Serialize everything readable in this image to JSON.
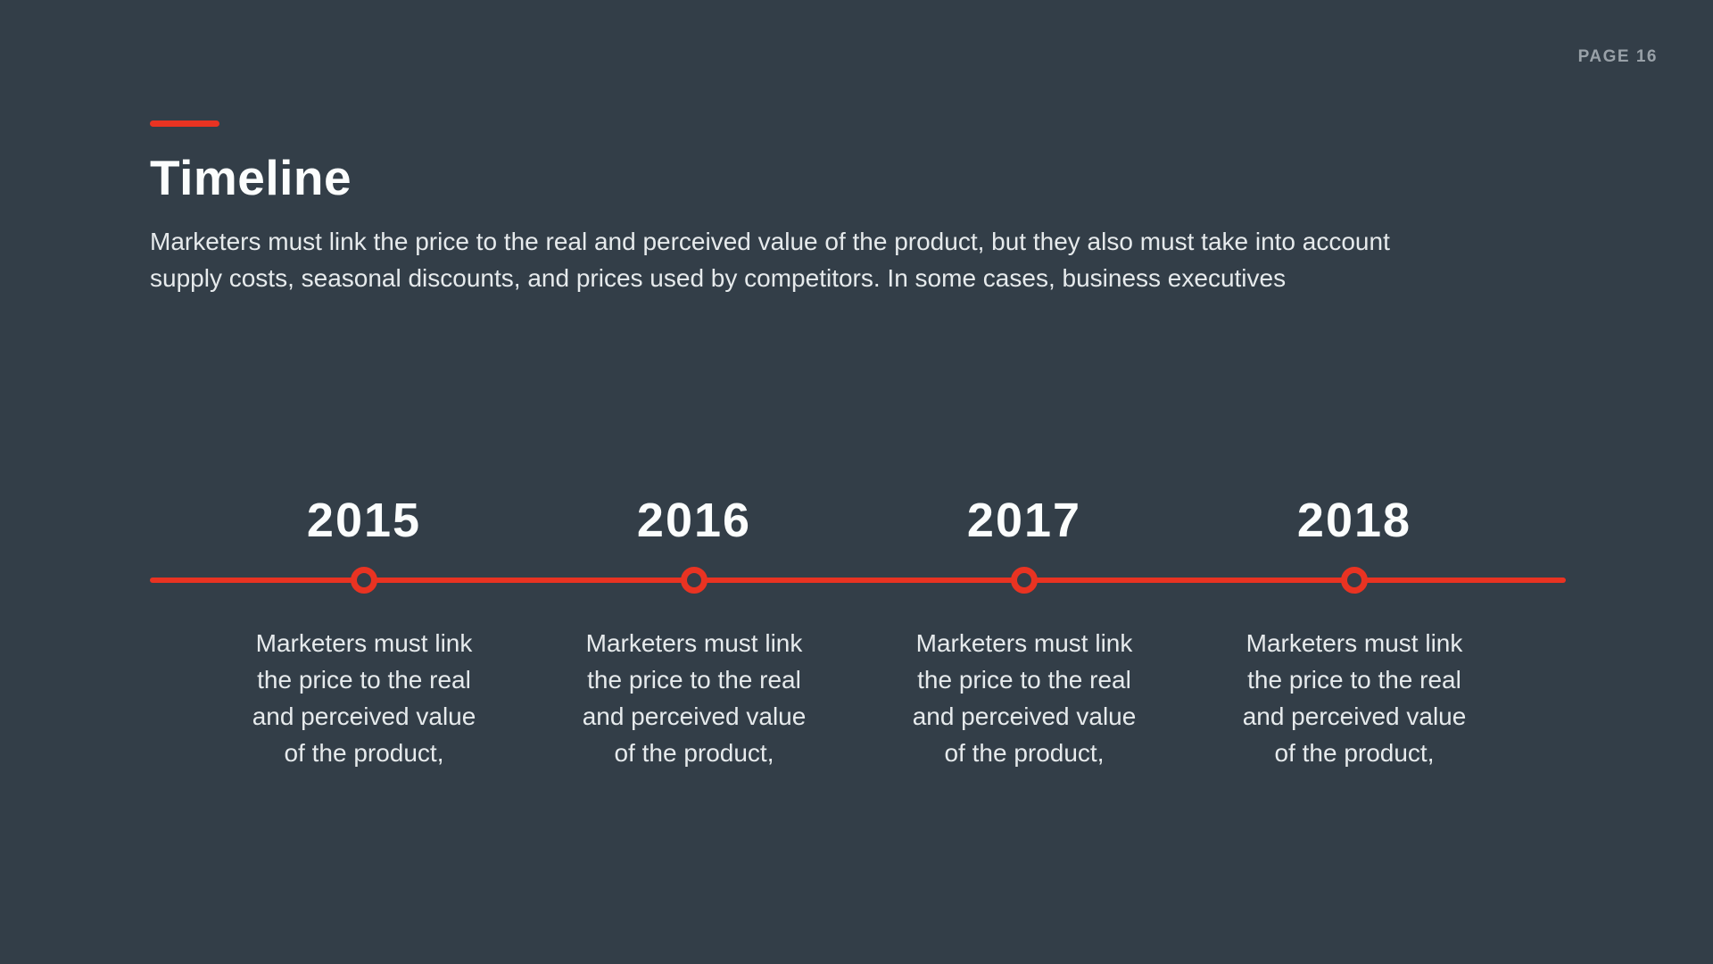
{
  "page": {
    "label": "PAGE 16"
  },
  "header": {
    "title": "Timeline",
    "subtitle_lines": [
      "Marketers must link the price to the real and perceived value of the product, but they also must take into account",
      "supply costs, seasonal discounts, and prices used by competitors. In some cases, business executives"
    ]
  },
  "timeline": {
    "items": [
      {
        "year": "2015",
        "lines": [
          "Marketers must link",
          "the price to the real",
          "and perceived value",
          "of the product,"
        ]
      },
      {
        "year": "2016",
        "lines": [
          "Marketers must link",
          "the price to the real",
          "and perceived value",
          "of the product,"
        ]
      },
      {
        "year": "2017",
        "lines": [
          "Marketers must link",
          "the price to the real",
          "and perceived value",
          "of the product,"
        ]
      },
      {
        "year": "2018",
        "lines": [
          "Marketers must link",
          "the price to the real",
          "and perceived value",
          "of the product,"
        ]
      }
    ]
  },
  "colors": {
    "background": "#333E48",
    "accent": "#E93322",
    "title_text": "#FBFDFD",
    "body_text": "#E6EAEC",
    "page_label": "#99A1A8"
  }
}
